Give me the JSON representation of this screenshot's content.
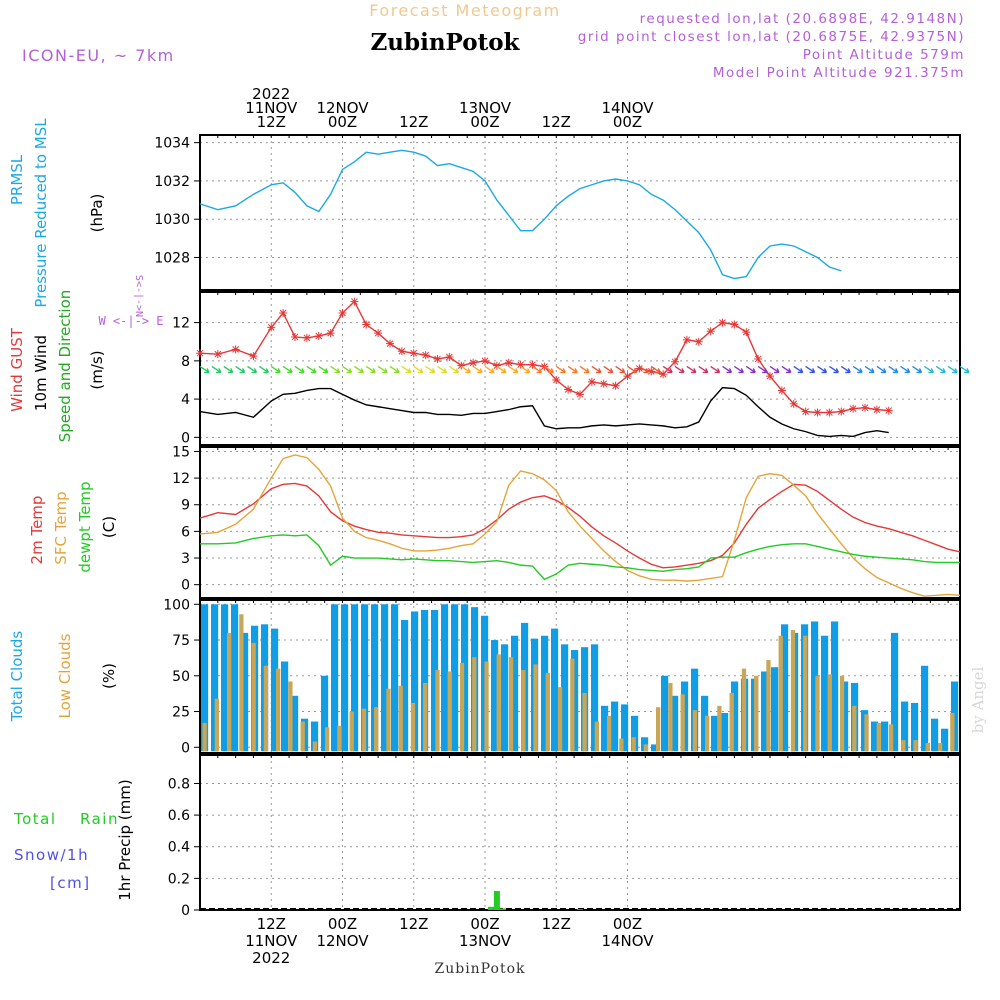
{
  "header": {
    "title": "Forecast Meteogram",
    "location": "ZubinPotok",
    "model": "ICON-EU, ~ 7km",
    "requested": "requested lon,lat (20.6898E, 42.9148N)",
    "closest": "grid point closest lon,lat (20.6875E, 42.9375N)",
    "point_altitude": "Point Altitude 579m",
    "model_altitude": "Model Point Altitude 921.375m",
    "footer_location": "ZubinPotok",
    "credit": "by Angel"
  },
  "colors": {
    "pressure": "#1ba8e6",
    "gust": "#e63838",
    "wind": "#000000",
    "t2m": "#e63838",
    "sfc": "#e5a43a",
    "dew": "#22cc22",
    "total_clouds": "#119de6",
    "low_clouds": "#c9a655",
    "rain": "#22cc22",
    "snow": "#5050e6",
    "title": "#f0c890",
    "meta": "#b45fd8"
  },
  "chart_data": [
    {
      "type": "line",
      "title": "PRMSL Pressure Reduced to MSL",
      "ylabel": "(hPa)",
      "yticks": [
        1028,
        1030,
        1032,
        1034
      ],
      "ylim": [
        1026.3,
        1034.4
      ],
      "x_hours": [
        0,
        3,
        6,
        9,
        12,
        14,
        16,
        18,
        20,
        22,
        24,
        26,
        28,
        30,
        32,
        34,
        36,
        38,
        40,
        42,
        44,
        46,
        48,
        50,
        52,
        54,
        56,
        58,
        60,
        62,
        64,
        66,
        68,
        70,
        72,
        74,
        76,
        78,
        80,
        82,
        84,
        86,
        88,
        90,
        92,
        94,
        96,
        98,
        100,
        102,
        104,
        106,
        108,
        110,
        112,
        114,
        116,
        118,
        120,
        122,
        124,
        126,
        128
      ],
      "series": [
        {
          "name": "PRMSL",
          "values": [
            1030.8,
            1030.5,
            1030.7,
            1031.3,
            1031.8,
            1031.9,
            1031.4,
            1030.7,
            1030.4,
            1031.3,
            1032.6,
            1033.0,
            1033.5,
            1033.4,
            1033.5,
            1033.6,
            1033.5,
            1033.3,
            1032.8,
            1032.9,
            1032.7,
            1032.5,
            1032.0,
            1031.0,
            1030.2,
            1029.4,
            1029.4,
            1030.0,
            1030.7,
            1031.2,
            1031.6,
            1031.8,
            1032.0,
            1032.1,
            1032.0,
            1031.8,
            1031.3,
            1031.0,
            1030.5,
            1029.9,
            1029.3,
            1028.4,
            1027.1,
            1026.9,
            1027.0,
            1028.0,
            1028.6,
            1028.7,
            1028.6,
            1028.3,
            1028.0,
            1027.5,
            1027.3
          ]
        }
      ]
    },
    {
      "type": "line",
      "title": "Wind GUST / 10m Wind Speed and Direction",
      "ylabel": "(m/s)",
      "compass": "W <-|-> E",
      "yticks": [
        0,
        4,
        8,
        12
      ],
      "ylim": [
        -0.8,
        15.2
      ],
      "x_hours": [
        0,
        3,
        6,
        9,
        12,
        14,
        16,
        18,
        20,
        22,
        24,
        26,
        28,
        30,
        32,
        34,
        36,
        38,
        40,
        42,
        44,
        46,
        48,
        50,
        52,
        54,
        56,
        58,
        60,
        62,
        64,
        66,
        68,
        70,
        72,
        74,
        76,
        78,
        80,
        82,
        84,
        86,
        88,
        90,
        92,
        94,
        96,
        98,
        100,
        102,
        104,
        106,
        108,
        110,
        112,
        114,
        116,
        118,
        120,
        122,
        124,
        126,
        128
      ],
      "series": [
        {
          "name": "Wind GUST",
          "values": [
            8.8,
            8.7,
            9.2,
            8.5,
            11.5,
            13.0,
            10.5,
            10.4,
            10.6,
            10.9,
            13.0,
            14.2,
            11.8,
            10.9,
            9.8,
            9.0,
            8.8,
            8.6,
            8.2,
            8.4,
            7.5,
            7.8,
            8.0,
            7.5,
            7.8,
            7.6,
            7.6,
            7.4,
            6.0,
            5.0,
            4.5,
            5.8,
            5.6,
            5.4,
            6.4,
            7.2,
            6.9,
            6.6,
            7.9,
            10.2,
            10.0,
            11.1,
            12.0,
            11.8,
            11.0,
            8.2,
            6.4,
            4.9,
            3.5,
            2.7,
            2.6,
            2.6,
            2.7,
            3.0,
            3.1,
            2.9,
            2.8
          ]
        },
        {
          "name": "10m Wind",
          "values": [
            2.7,
            2.4,
            2.6,
            2.1,
            3.8,
            4.5,
            4.6,
            4.9,
            5.1,
            5.1,
            4.5,
            3.9,
            3.4,
            3.2,
            3.0,
            2.8,
            2.6,
            2.6,
            2.4,
            2.4,
            2.3,
            2.5,
            2.5,
            2.7,
            2.9,
            3.2,
            3.3,
            1.2,
            0.9,
            1.0,
            1.0,
            1.2,
            1.3,
            1.2,
            1.3,
            1.4,
            1.3,
            1.2,
            1.0,
            1.1,
            1.6,
            3.8,
            5.2,
            5.1,
            4.4,
            3.2,
            2.1,
            1.4,
            0.9,
            0.6,
            0.2,
            0.1,
            0.2,
            0.1,
            0.5,
            0.7,
            0.5
          ]
        }
      ]
    },
    {
      "type": "line",
      "title": "2m Temp / SFC Temp / dewpt Temp",
      "ylabel": "(C)",
      "yticks": [
        0,
        3,
        6,
        9,
        12,
        15
      ],
      "ylim": [
        -1.5,
        15.5
      ],
      "x_hours": [
        0,
        3,
        6,
        9,
        12,
        14,
        16,
        18,
        20,
        22,
        24,
        26,
        28,
        30,
        32,
        34,
        36,
        38,
        40,
        42,
        44,
        46,
        48,
        50,
        52,
        54,
        56,
        58,
        60,
        62,
        64,
        66,
        68,
        70,
        72,
        74,
        76,
        78,
        80,
        82,
        84,
        86,
        88,
        90,
        92,
        94,
        96,
        98,
        100,
        102,
        104,
        106,
        108,
        110,
        112,
        114,
        116,
        118,
        120,
        122,
        124,
        126,
        128
      ],
      "series": [
        {
          "name": "2m Temp",
          "values": [
            7.5,
            8.1,
            7.9,
            9.1,
            10.8,
            11.3,
            11.4,
            11.1,
            10.0,
            8.2,
            7.2,
            6.6,
            6.2,
            5.9,
            5.8,
            5.6,
            5.5,
            5.4,
            5.3,
            5.3,
            5.4,
            5.6,
            6.3,
            7.3,
            8.5,
            9.3,
            9.8,
            10.0,
            9.5,
            8.7,
            7.7,
            6.5,
            5.5,
            4.7,
            3.8,
            3.0,
            2.3,
            1.9,
            2.0,
            2.2,
            2.4,
            2.7,
            3.3,
            4.7,
            6.8,
            8.6,
            9.6,
            10.5,
            11.3,
            11.2,
            10.5,
            9.5,
            8.5,
            7.6,
            7.0,
            6.6,
            6.3,
            5.9,
            5.5,
            5.0,
            4.5,
            4.0,
            3.7
          ]
        },
        {
          "name": "SFC Temp",
          "values": [
            5.7,
            5.9,
            6.8,
            8.5,
            12.0,
            14.2,
            14.6,
            14.3,
            13.0,
            11.1,
            7.5,
            6.0,
            5.3,
            5.0,
            4.6,
            4.1,
            3.8,
            3.8,
            3.9,
            4.1,
            4.4,
            4.6,
            5.7,
            7.1,
            11.2,
            12.8,
            12.5,
            11.8,
            10.6,
            8.2,
            6.6,
            5.2,
            3.8,
            2.6,
            1.6,
            1.0,
            0.6,
            0.5,
            0.5,
            0.4,
            0.5,
            0.7,
            0.9,
            5.0,
            9.8,
            12.2,
            12.5,
            12.3,
            11.2,
            10.0,
            8.0,
            6.3,
            4.6,
            3.0,
            1.8,
            0.8,
            0.2,
            -0.4,
            -0.9,
            -1.3,
            -1.2,
            -1.1,
            -1.2
          ]
        },
        {
          "name": "dewpt Temp",
          "values": [
            4.6,
            4.6,
            4.7,
            5.2,
            5.5,
            5.6,
            5.5,
            5.6,
            4.4,
            2.2,
            3.2,
            3.0,
            3.0,
            3.0,
            2.9,
            2.8,
            2.9,
            2.8,
            2.7,
            2.7,
            2.6,
            2.5,
            2.6,
            2.7,
            2.5,
            2.2,
            2.1,
            0.6,
            1.2,
            2.2,
            2.4,
            2.3,
            2.2,
            2.0,
            1.9,
            1.7,
            1.6,
            1.5,
            1.7,
            1.8,
            2.0,
            3.0,
            3.1,
            3.1,
            3.6,
            4.0,
            4.3,
            4.5,
            4.6,
            4.6,
            4.3,
            4.0,
            3.7,
            3.4,
            3.2,
            3.1,
            3.0,
            2.9,
            2.8,
            2.6,
            2.5,
            2.5,
            2.5
          ]
        }
      ]
    },
    {
      "type": "bar",
      "title": "Total Clouds / Low Clouds",
      "ylabel": "(%)",
      "yticks": [
        0,
        25,
        50,
        75,
        100
      ],
      "ylim": [
        -4,
        103
      ],
      "total_clouds": [
        100,
        100,
        100,
        100,
        80,
        85,
        86,
        83,
        60,
        36,
        20,
        18,
        50,
        100,
        100,
        100,
        100,
        100,
        100,
        100,
        89,
        95,
        96,
        96,
        100,
        100,
        100,
        98,
        92,
        75,
        72,
        78,
        87,
        76,
        78,
        83,
        72,
        68,
        70,
        72,
        29,
        32,
        30,
        22,
        7,
        2,
        50,
        36,
        46,
        55,
        36,
        22,
        24,
        46,
        48,
        48,
        53,
        56,
        86,
        80,
        86,
        88,
        78,
        88,
        46,
        45,
        26,
        18,
        18,
        80,
        32,
        31,
        57,
        20,
        13,
        46
      ],
      "low_clouds": [
        17,
        34,
        80,
        93,
        73,
        57,
        55,
        46,
        18,
        4,
        14,
        15,
        25,
        27,
        28,
        41,
        43,
        31,
        45,
        54,
        53,
        59,
        63,
        60,
        65,
        63,
        54,
        58,
        52,
        42,
        62,
        38,
        18,
        22,
        6,
        7,
        2,
        28,
        45,
        37,
        26,
        22,
        29,
        38,
        55,
        50,
        61,
        78,
        82,
        78,
        50,
        51,
        50,
        29,
        23,
        17,
        16,
        5,
        5,
        3,
        3,
        24
      ],
      "low_clouds_note": "low cloud values listed in the order they are drawn, left to right, one per hourly bar where non-zero"
    },
    {
      "type": "bar",
      "title": "1hr Precip (mm)",
      "ylabel": "1hr Precip (mm)",
      "legend": [
        "Total Rain",
        "Snow/1h",
        "[cm]"
      ],
      "yticks": [
        0,
        0.2,
        0.4,
        0.6,
        0.8
      ],
      "ylim": [
        0,
        0.98
      ],
      "rain": [
        {
          "hour": 49,
          "value": 0.02
        },
        {
          "hour": 50,
          "value": 0.12
        },
        {
          "hour": 51,
          "value": 0.01
        },
        {
          "hour": 64,
          "value": 0.005
        }
      ],
      "snow": []
    }
  ],
  "time_axis": {
    "top": [
      {
        "hour": 12,
        "lines": [
          "2022",
          "11NOV",
          "12Z"
        ]
      },
      {
        "hour": 24,
        "lines": [
          "12NOV",
          "00Z"
        ]
      },
      {
        "hour": 36,
        "lines": [
          "12Z"
        ]
      },
      {
        "hour": 48,
        "lines": [
          "13NOV",
          "00Z"
        ]
      },
      {
        "hour": 60,
        "lines": [
          "12Z"
        ]
      },
      {
        "hour": 72,
        "lines": [
          "14NOV",
          "00Z"
        ]
      }
    ],
    "bottom": [
      {
        "hour": 12,
        "lines": [
          "12Z",
          "11NOV",
          "2022"
        ]
      },
      {
        "hour": 24,
        "lines": [
          "00Z",
          "12NOV"
        ]
      },
      {
        "hour": 36,
        "lines": [
          "12Z"
        ]
      },
      {
        "hour": 48,
        "lines": [
          "00Z",
          "13NOV"
        ]
      },
      {
        "hour": 60,
        "lines": [
          "12Z"
        ]
      },
      {
        "hour": 72,
        "lines": [
          "00Z",
          "14NOV"
        ]
      }
    ]
  },
  "panel_labels": {
    "p1": [
      "PRMSL",
      "Pressure Reduced to MSL",
      "(hPa)"
    ],
    "p2": [
      "Wind GUST",
      "10m Wind",
      "Speed and Direction",
      "(m/s)"
    ],
    "p3": [
      "2m Temp",
      "SFC Temp",
      "dewpt Temp",
      "(C)"
    ],
    "p4": [
      "Total Clouds",
      "Low Clouds",
      "(%)"
    ],
    "p5": [
      "Total",
      "Rain",
      "Snow/1h",
      "[cm]"
    ]
  }
}
